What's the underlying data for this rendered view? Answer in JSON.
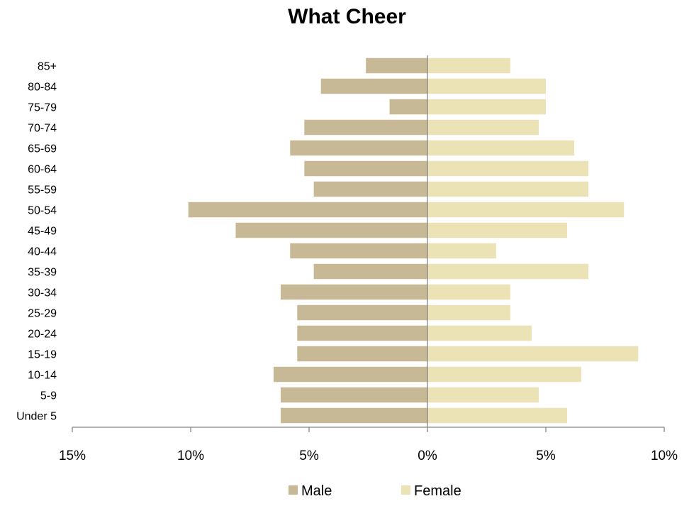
{
  "chart_data": {
    "type": "bar",
    "orientation": "horizontal",
    "title": "What Cheer",
    "categories": [
      "Under 5",
      "5-9",
      "10-14",
      "15-19",
      "20-24",
      "25-29",
      "30-34",
      "35-39",
      "40-44",
      "45-49",
      "50-54",
      "55-59",
      "60-64",
      "65-69",
      "70-74",
      "75-79",
      "80-84",
      "85+"
    ],
    "series": [
      {
        "name": "Male",
        "color": "#c8b996",
        "values": [
          6.2,
          6.2,
          6.5,
          5.5,
          5.5,
          5.5,
          6.2,
          4.8,
          5.8,
          8.1,
          10.1,
          4.8,
          5.2,
          5.8,
          5.2,
          1.6,
          4.5,
          2.6
        ]
      },
      {
        "name": "Female",
        "color": "#ebe2b6",
        "values": [
          5.9,
          4.7,
          6.5,
          8.9,
          4.4,
          3.5,
          3.5,
          6.8,
          2.9,
          5.9,
          8.3,
          6.8,
          6.8,
          6.2,
          4.7,
          5.0,
          5.0,
          3.5
        ]
      }
    ],
    "xlim": [
      -15,
      10
    ],
    "xticks": [
      -15,
      -10,
      -5,
      0,
      5,
      10
    ],
    "xtick_labels": [
      "15%",
      "10%",
      "5%",
      "0%",
      "5%",
      "10%"
    ],
    "xlabel": "",
    "ylabel": "",
    "grid": false,
    "legend_position": "bottom"
  }
}
